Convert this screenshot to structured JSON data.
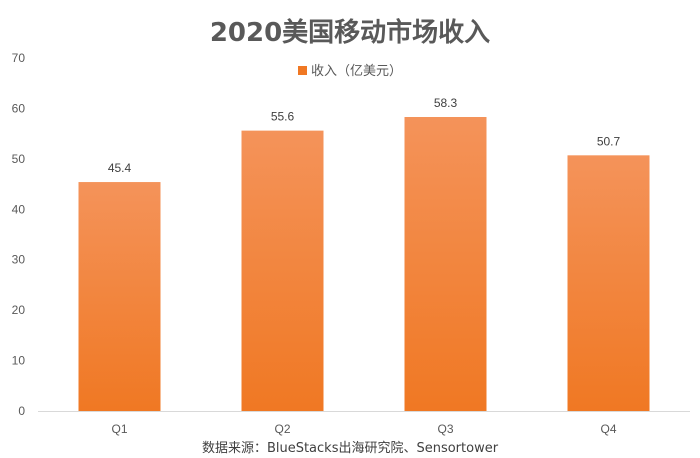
{
  "chart_data": {
    "type": "bar",
    "title": "2020美国移动市场收入",
    "categories": [
      "Q1",
      "Q2",
      "Q3",
      "Q4"
    ],
    "series": [
      {
        "name": "收入（亿美元）",
        "values": [
          45.4,
          55.6,
          58.3,
          50.7
        ]
      }
    ],
    "data_labels": [
      "45.4",
      "55.6",
      "58.3",
      "50.7"
    ],
    "ylim": [
      0,
      70
    ],
    "y_ticks": [
      "0",
      "10",
      "20",
      "30",
      "40",
      "50",
      "60",
      "70"
    ],
    "legend_position": "top",
    "grid": false,
    "bar_color": "#F07823",
    "bar_color_top": "#F4935A",
    "source": "数据来源：BlueStacks出海研究院、Sensortower"
  }
}
